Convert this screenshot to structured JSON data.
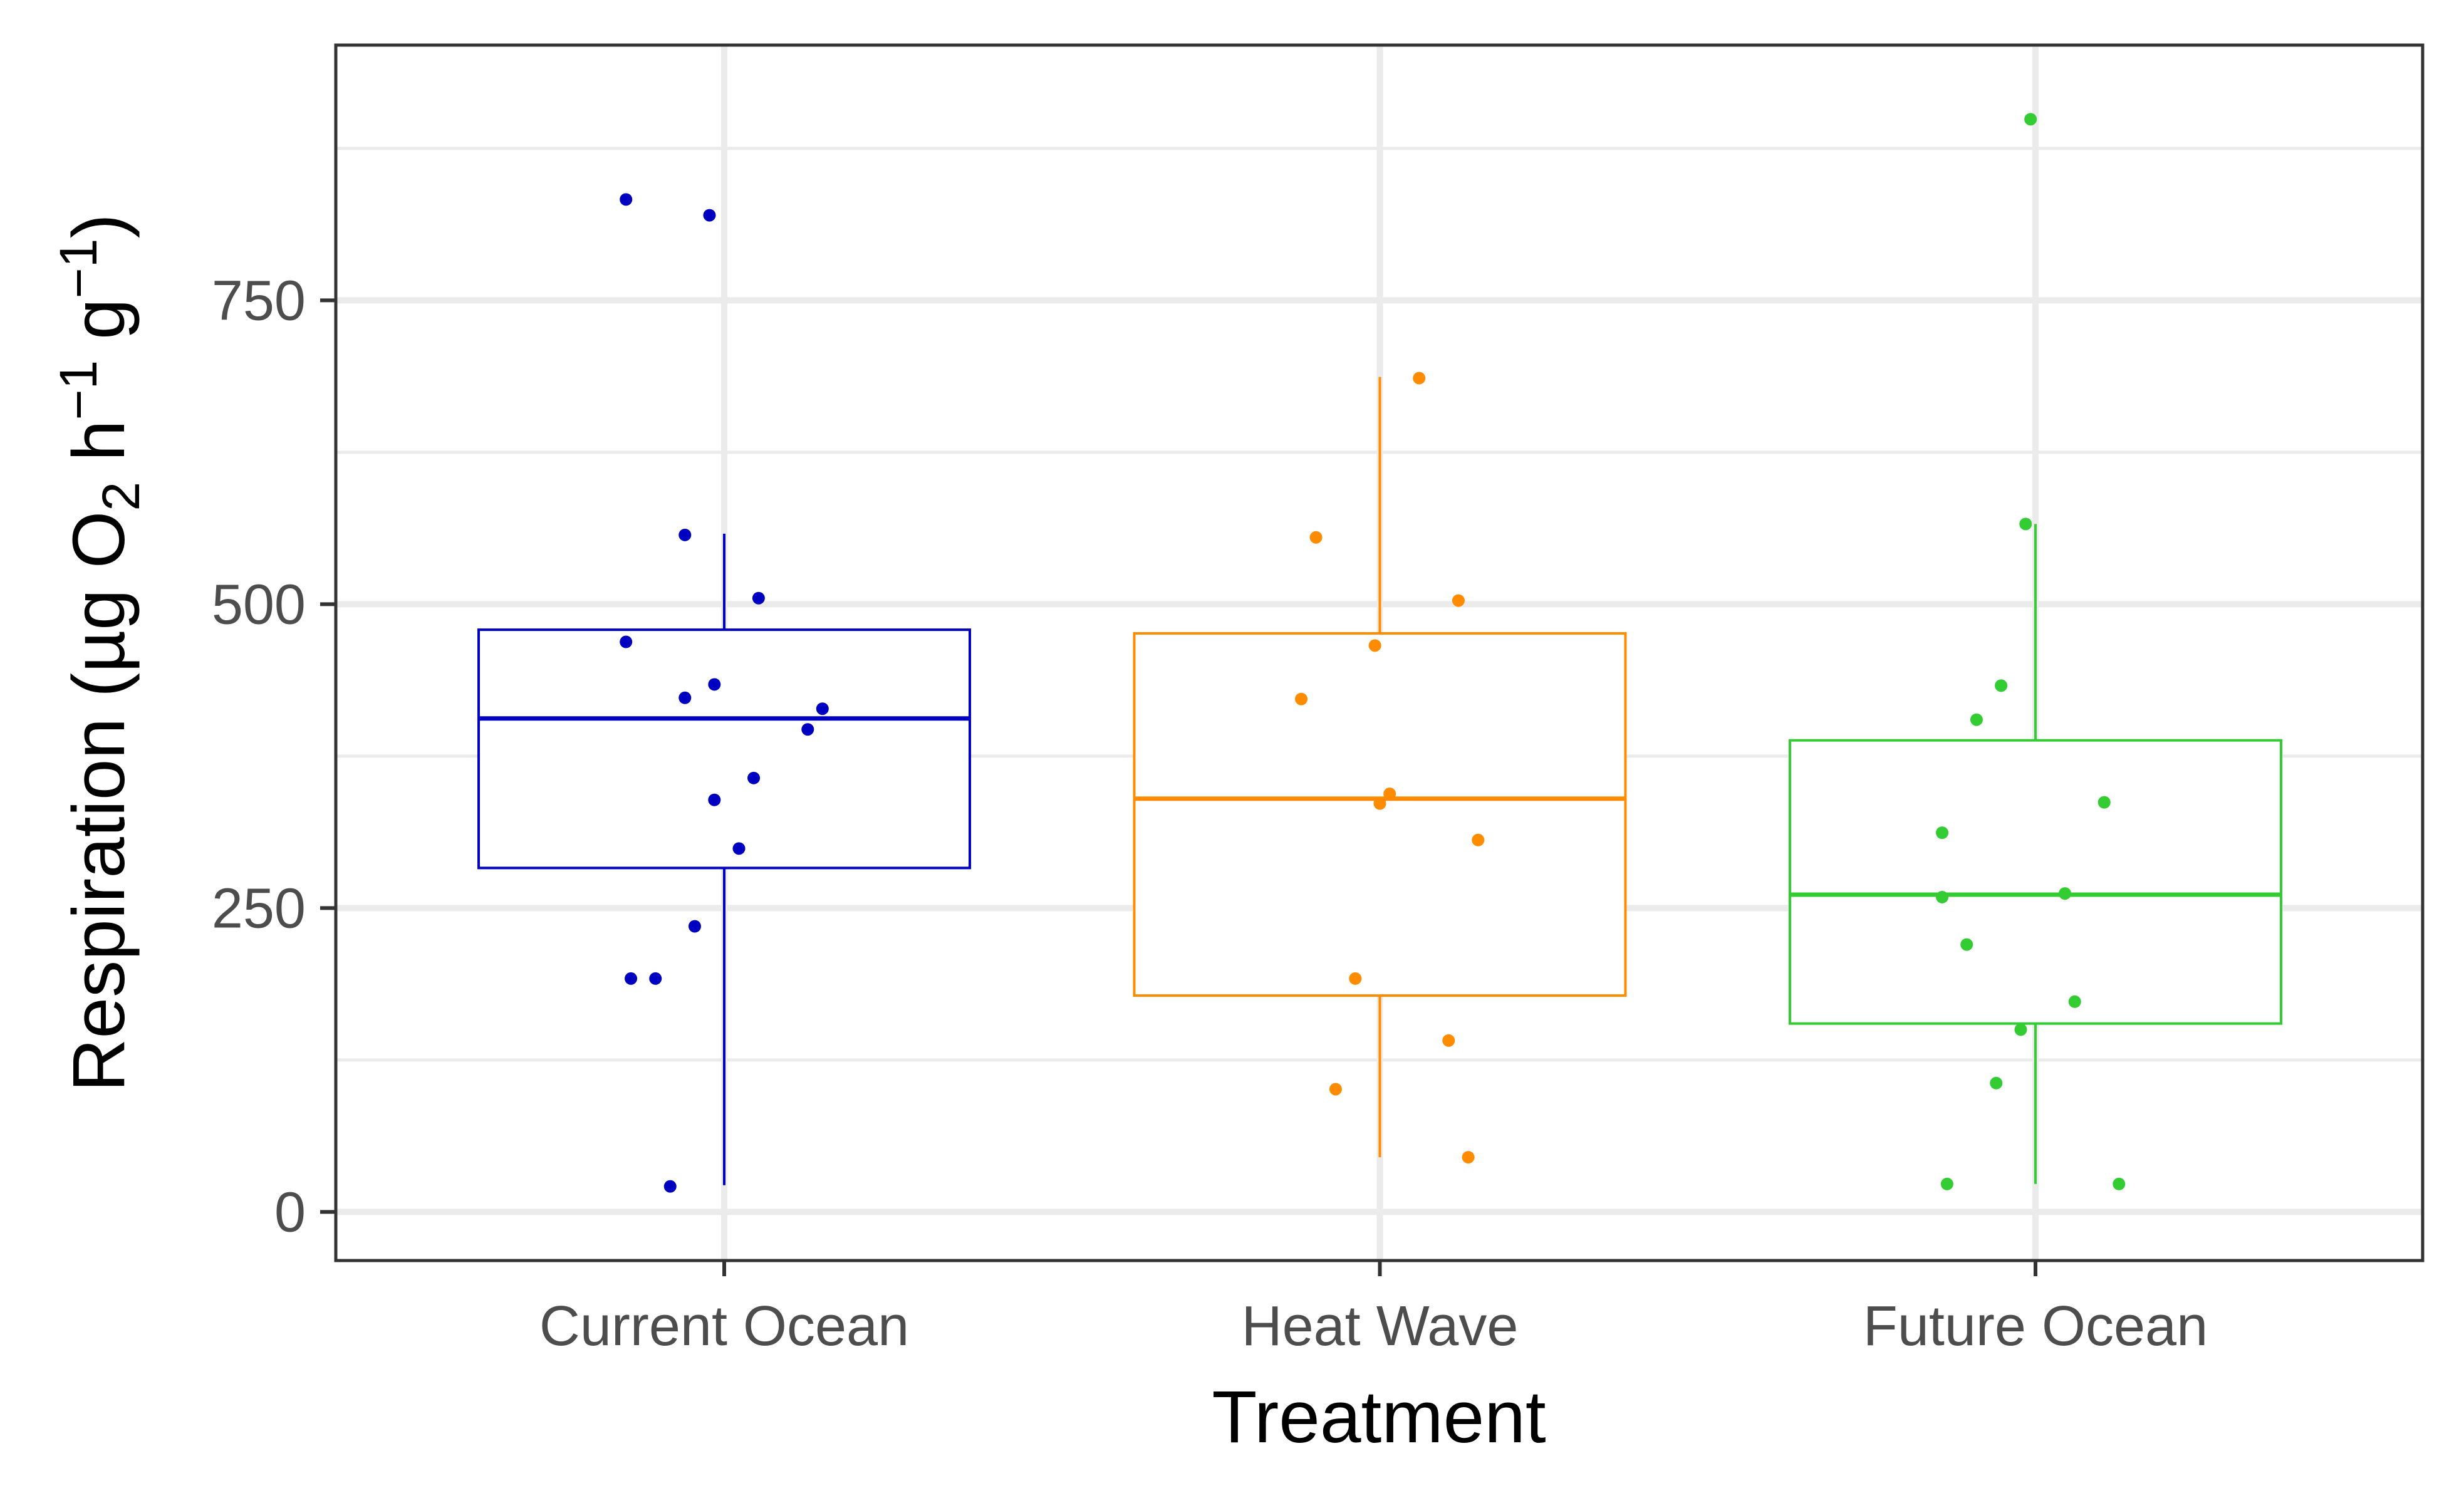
{
  "chart_data": {
    "type": "boxplot",
    "xlabel": "Treatment",
    "ylabel_parts": {
      "pre": "Respiration (µg O",
      "sub": "2",
      "mid1": " h",
      "sup1": "−1",
      "mid2": " g",
      "sup2": "−1",
      "post": ")"
    },
    "ylim": [
      -40,
      960
    ],
    "yticks": [
      0,
      250,
      500,
      750
    ],
    "ytick_labels": [
      "0",
      "250",
      "500",
      "750"
    ],
    "grid": true,
    "categories": [
      "Current Ocean",
      "Heat Wave",
      "Future Ocean"
    ],
    "series": [
      {
        "category": "Current Ocean",
        "color": "#0000c0",
        "box": {
          "whisker_low": 22,
          "q1": 283,
          "median": 406,
          "q3": 479,
          "whisker_high": 558
        },
        "points": [
          {
            "x": -0.2,
            "y": 833
          },
          {
            "x": -0.03,
            "y": 820
          },
          {
            "x": -0.08,
            "y": 557
          },
          {
            "x": 0.07,
            "y": 505
          },
          {
            "x": -0.2,
            "y": 469
          },
          {
            "x": -0.02,
            "y": 434
          },
          {
            "x": -0.08,
            "y": 423
          },
          {
            "x": 0.2,
            "y": 414
          },
          {
            "x": 0.17,
            "y": 397
          },
          {
            "x": 0.06,
            "y": 357
          },
          {
            "x": -0.02,
            "y": 339
          },
          {
            "x": 0.03,
            "y": 299
          },
          {
            "x": -0.06,
            "y": 235
          },
          {
            "x": -0.19,
            "y": 192
          },
          {
            "x": -0.14,
            "y": 192
          },
          {
            "x": -0.11,
            "y": 21
          }
        ]
      },
      {
        "category": "Heat Wave",
        "color": "#ff8c00",
        "box": {
          "whisker_low": 45,
          "q1": 178,
          "median": 340,
          "q3": 476,
          "whisker_high": 687
        },
        "points": [
          {
            "x": 0.08,
            "y": 686
          },
          {
            "x": -0.13,
            "y": 555
          },
          {
            "x": 0.16,
            "y": 503
          },
          {
            "x": -0.01,
            "y": 466
          },
          {
            "x": -0.16,
            "y": 422
          },
          {
            "x": 0.02,
            "y": 344
          },
          {
            "x": 0.0,
            "y": 336
          },
          {
            "x": 0.2,
            "y": 306
          },
          {
            "x": -0.05,
            "y": 192
          },
          {
            "x": 0.14,
            "y": 141
          },
          {
            "x": -0.09,
            "y": 101
          },
          {
            "x": 0.18,
            "y": 45
          }
        ]
      },
      {
        "category": "Future Ocean",
        "color": "#33cc33",
        "box": {
          "whisker_low": 23,
          "q1": 155,
          "median": 261,
          "q3": 388,
          "whisker_high": 566
        },
        "points": [
          {
            "x": -0.01,
            "y": 899
          },
          {
            "x": -0.02,
            "y": 566
          },
          {
            "x": -0.07,
            "y": 433
          },
          {
            "x": -0.12,
            "y": 405
          },
          {
            "x": 0.14,
            "y": 337
          },
          {
            "x": -0.19,
            "y": 312
          },
          {
            "x": 0.06,
            "y": 262
          },
          {
            "x": -0.19,
            "y": 259
          },
          {
            "x": -0.14,
            "y": 220
          },
          {
            "x": 0.08,
            "y": 173
          },
          {
            "x": -0.03,
            "y": 150
          },
          {
            "x": -0.08,
            "y": 106
          },
          {
            "x": -0.18,
            "y": 23
          },
          {
            "x": 0.17,
            "y": 23
          }
        ]
      }
    ]
  },
  "colors": {
    "panel_border": "#333333",
    "grid_major": "#ebebeb",
    "grid_minor": "#ebebeb"
  }
}
